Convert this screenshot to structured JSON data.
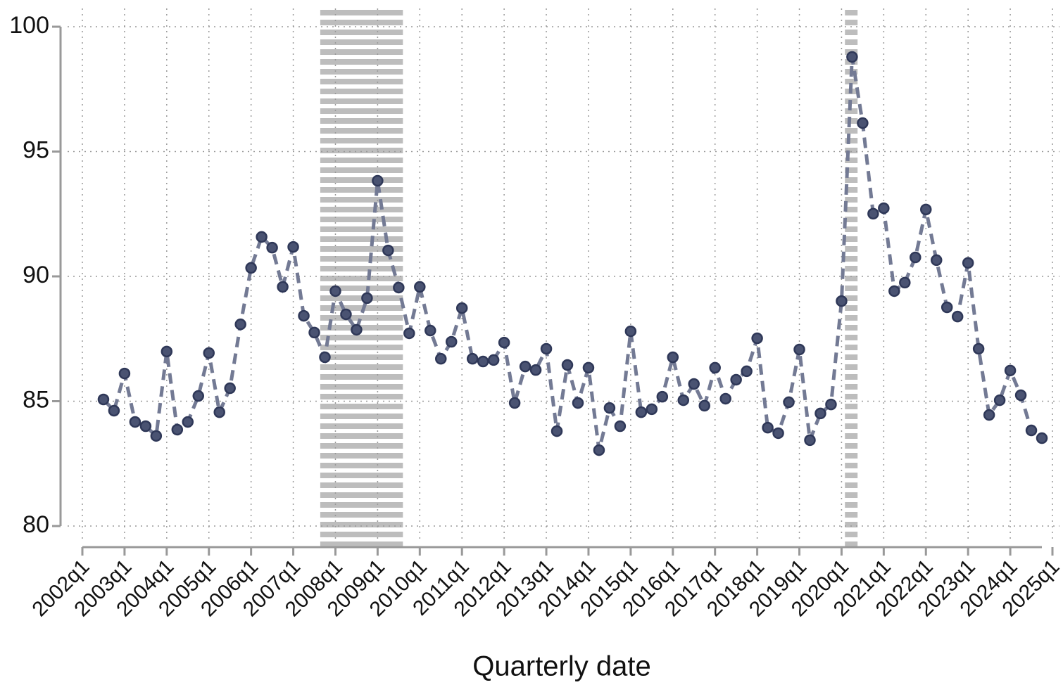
{
  "chart_data": {
    "type": "line",
    "x_label": "Quarterly date",
    "x": [
      2002.5,
      2002.75,
      2003,
      2003.25,
      2003.5,
      2003.75,
      2004,
      2004.25,
      2004.5,
      2004.75,
      2005,
      2005.25,
      2005.5,
      2005.75,
      2006,
      2006.25,
      2006.5,
      2006.75,
      2007,
      2007.25,
      2007.5,
      2007.75,
      2008,
      2008.25,
      2008.5,
      2008.75,
      2009,
      2009.25,
      2009.5,
      2009.75,
      2010,
      2010.25,
      2010.5,
      2010.75,
      2011,
      2011.25,
      2011.5,
      2011.75,
      2012,
      2012.25,
      2012.5,
      2012.75,
      2013,
      2013.25,
      2013.5,
      2013.75,
      2014,
      2014.25,
      2014.5,
      2014.75,
      2015,
      2015.25,
      2015.5,
      2015.75,
      2016,
      2016.25,
      2016.5,
      2016.75,
      2017,
      2017.25,
      2017.5,
      2017.75,
      2018,
      2018.25,
      2018.5,
      2018.75,
      2019,
      2019.25,
      2019.5,
      2019.75,
      2020,
      2020.25,
      2020.5,
      2020.75,
      2021,
      2021.25,
      2021.5,
      2021.75,
      2022,
      2022.25,
      2022.5,
      2022.75,
      2023,
      2023.25,
      2023.5,
      2023.75,
      2024,
      2024.25,
      2024.5,
      2024.75
    ],
    "series": [
      {
        "color": "#737a94",
        "marker_color": "#4a5372",
        "values": [
          85.07,
          84.62,
          86.11,
          84.17,
          84.0,
          83.61,
          86.99,
          83.86,
          84.17,
          85.21,
          86.93,
          84.56,
          85.52,
          88.08,
          90.34,
          91.58,
          91.15,
          89.58,
          91.18,
          88.42,
          87.75,
          86.76,
          89.41,
          88.48,
          87.86,
          89.13,
          93.83,
          91.04,
          89.55,
          87.72,
          89.58,
          87.83,
          86.7,
          87.38,
          88.73,
          86.7,
          86.59,
          86.65,
          87.35,
          84.93,
          86.39,
          86.25,
          87.1,
          83.8,
          86.45,
          84.93,
          86.34,
          83.04,
          84.73,
          84.0,
          87.8,
          84.56,
          84.68,
          85.18,
          86.76,
          85.04,
          85.69,
          84.82,
          86.34,
          85.1,
          85.86,
          86.2,
          87.52,
          83.94,
          83.72,
          84.96,
          87.07,
          83.44,
          84.51,
          84.87,
          89.01,
          98.79,
          96.14,
          92.51,
          92.73,
          89.41,
          89.75,
          90.76,
          92.68,
          90.65,
          88.76,
          88.39,
          90.54,
          87.1,
          84.45,
          85.04,
          86.23,
          85.24,
          83.83,
          83.52
        ]
      }
    ],
    "shaded_periods": [
      [
        2007.64,
        2009.6
      ],
      [
        2020.08,
        2020.38
      ]
    ],
    "shade_color": "#bdbdbd",
    "xlim": [
      2002,
      2025
    ],
    "xticks": [
      {
        "value": 2002,
        "label": "2002q1"
      },
      {
        "value": 2003,
        "label": "2003q1"
      },
      {
        "value": 2004,
        "label": "2004q1"
      },
      {
        "value": 2005,
        "label": "2005q1"
      },
      {
        "value": 2006,
        "label": "2006q1"
      },
      {
        "value": 2007,
        "label": "2007q1"
      },
      {
        "value": 2008,
        "label": "2008q1"
      },
      {
        "value": 2009,
        "label": "2009q1"
      },
      {
        "value": 2010,
        "label": "2010q1"
      },
      {
        "value": 2011,
        "label": "2011q1"
      },
      {
        "value": 2012,
        "label": "2012q1"
      },
      {
        "value": 2013,
        "label": "2013q1"
      },
      {
        "value": 2014,
        "label": "2014q1"
      },
      {
        "value": 2015,
        "label": "2015q1"
      },
      {
        "value": 2016,
        "label": "2016q1"
      },
      {
        "value": 2017,
        "label": "2017q1"
      },
      {
        "value": 2018,
        "label": "2018q1"
      },
      {
        "value": 2019,
        "label": "2019q1"
      },
      {
        "value": 2020,
        "label": "2020q1"
      },
      {
        "value": 2021,
        "label": "2021q1"
      },
      {
        "value": 2022,
        "label": "2022q1"
      },
      {
        "value": 2023,
        "label": "2023q1"
      },
      {
        "value": 2024,
        "label": "2024q1"
      },
      {
        "value": 2025,
        "label": "2025q1"
      }
    ],
    "ylim": [
      80,
      100
    ],
    "yticks": [
      80,
      85,
      90,
      95,
      100
    ],
    "grid": true
  }
}
